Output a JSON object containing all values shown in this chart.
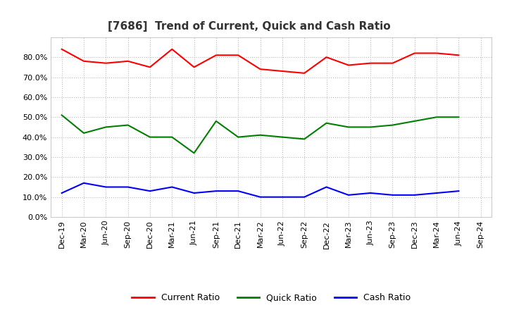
{
  "title": "[7686]  Trend of Current, Quick and Cash Ratio",
  "labels": [
    "Dec-19",
    "Mar-20",
    "Jun-20",
    "Sep-20",
    "Dec-20",
    "Mar-21",
    "Jun-21",
    "Sep-21",
    "Dec-21",
    "Mar-22",
    "Jun-22",
    "Sep-22",
    "Dec-22",
    "Mar-23",
    "Jun-23",
    "Sep-23",
    "Dec-23",
    "Mar-24",
    "Jun-24",
    "Sep-24"
  ],
  "current_ratio": [
    0.84,
    0.78,
    0.77,
    0.78,
    0.75,
    0.84,
    0.75,
    0.81,
    0.81,
    0.74,
    0.73,
    0.72,
    0.8,
    0.76,
    0.77,
    0.77,
    0.82,
    0.82,
    0.81,
    null
  ],
  "quick_ratio": [
    0.51,
    0.42,
    0.45,
    0.46,
    0.4,
    0.4,
    0.32,
    0.48,
    0.4,
    0.41,
    0.4,
    0.39,
    0.47,
    0.45,
    0.45,
    0.46,
    0.48,
    0.5,
    0.5,
    null
  ],
  "cash_ratio": [
    0.12,
    0.17,
    0.15,
    0.15,
    0.13,
    0.15,
    0.12,
    0.13,
    0.13,
    0.1,
    0.1,
    0.1,
    0.15,
    0.11,
    0.12,
    0.11,
    0.11,
    0.12,
    0.13,
    null
  ],
  "current_color": "#FF0000",
  "quick_color": "#008000",
  "cash_color": "#0000FF",
  "bg_color": "#FFFFFF",
  "plot_bg_color": "#FFFFFF",
  "grid_color": "#BBBBBB",
  "ylim": [
    0.0,
    0.9
  ],
  "yticks": [
    0.0,
    0.1,
    0.2,
    0.3,
    0.4,
    0.5,
    0.6,
    0.7,
    0.8
  ],
  "legend_labels": [
    "Current Ratio",
    "Quick Ratio",
    "Cash Ratio"
  ],
  "title_fontsize": 11,
  "tick_fontsize": 8,
  "legend_fontsize": 9
}
